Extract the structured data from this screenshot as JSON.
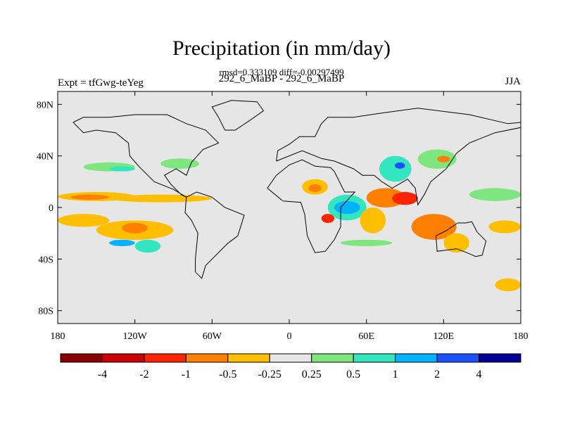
{
  "title": "Precipitation (in mm/day)",
  "stats": {
    "rmsd_label": "rmsd=",
    "rmsd_value": "0.333109",
    "diff_label": "diff=",
    "diff_value": "-0.00297499"
  },
  "case_label": "292_6_MaBP - 292_6_MaBP",
  "expt_label": "Expt = tfGwg-teYeg",
  "season": "JJA",
  "colors": {
    "background_field": "#e6e6e6",
    "levels": [
      "#8b0000",
      "#cd0000",
      "#ff2400",
      "#ff7f00",
      "#ffbf00",
      "#e6e6e6",
      "#7fe57f",
      "#34e6c0",
      "#00b2ff",
      "#1e4fff",
      "#000098"
    ]
  },
  "chart_data": {
    "type": "heatmap",
    "title": "Precipitation (in mm/day)",
    "subtitle": "292_6_MaBP - 292_6_MaBP",
    "x_ticks": [
      {
        "value": -180,
        "label": "180"
      },
      {
        "value": -120,
        "label": "120W"
      },
      {
        "value": -60,
        "label": "60W"
      },
      {
        "value": 0,
        "label": "0"
      },
      {
        "value": 60,
        "label": "60E"
      },
      {
        "value": 120,
        "label": "120E"
      },
      {
        "value": 180,
        "label": "180"
      }
    ],
    "y_ticks": [
      {
        "value": 80,
        "label": "80N"
      },
      {
        "value": 40,
        "label": "40N"
      },
      {
        "value": 0,
        "label": "0"
      },
      {
        "value": -40,
        "label": "40S"
      },
      {
        "value": -80,
        "label": "80S"
      }
    ],
    "xlim": [
      -180,
      180
    ],
    "ylim": [
      -90,
      90
    ],
    "colorbar_labels": [
      "-4",
      "-2",
      "-1",
      "-0.5",
      "-0.25",
      "0.25",
      "0.5",
      "1",
      "2",
      "4"
    ],
    "regions": [
      {
        "lon": [
          -180,
          -120
        ],
        "lat": [
          5,
          12
        ],
        "level": 4
      },
      {
        "lon": [
          -140,
          -60
        ],
        "lat": [
          4,
          10
        ],
        "level": 4
      },
      {
        "lon": [
          -170,
          -140
        ],
        "lat": [
          6,
          10
        ],
        "level": 3
      },
      {
        "lon": [
          -180,
          -140
        ],
        "lat": [
          -15,
          -5
        ],
        "level": 4
      },
      {
        "lon": [
          -150,
          -90
        ],
        "lat": [
          -25,
          -10
        ],
        "level": 4
      },
      {
        "lon": [
          -130,
          -110
        ],
        "lat": [
          -20,
          -12
        ],
        "level": 3
      },
      {
        "lon": [
          -140,
          -120
        ],
        "lat": [
          -30,
          -25
        ],
        "level": 8
      },
      {
        "lon": [
          -120,
          -100
        ],
        "lat": [
          -35,
          -25
        ],
        "level": 7
      },
      {
        "lon": [
          -160,
          -120
        ],
        "lat": [
          28,
          35
        ],
        "level": 6
      },
      {
        "lon": [
          -140,
          -120
        ],
        "lat": [
          28,
          32
        ],
        "level": 7
      },
      {
        "lon": [
          -100,
          -70
        ],
        "lat": [
          30,
          38
        ],
        "level": 6
      },
      {
        "lon": [
          10,
          30
        ],
        "lat": [
          10,
          22
        ],
        "level": 4
      },
      {
        "lon": [
          15,
          25
        ],
        "lat": [
          12,
          18
        ],
        "level": 3
      },
      {
        "lon": [
          30,
          60
        ],
        "lat": [
          -10,
          10
        ],
        "level": 7
      },
      {
        "lon": [
          35,
          55
        ],
        "lat": [
          -5,
          5
        ],
        "level": 8
      },
      {
        "lon": [
          25,
          35
        ],
        "lat": [
          -12,
          -5
        ],
        "level": 2
      },
      {
        "lon": [
          55,
          75
        ],
        "lat": [
          -20,
          0
        ],
        "level": 4
      },
      {
        "lon": [
          60,
          90
        ],
        "lat": [
          0,
          15
        ],
        "level": 3
      },
      {
        "lon": [
          80,
          100
        ],
        "lat": [
          2,
          12
        ],
        "level": 2
      },
      {
        "lon": [
          70,
          95
        ],
        "lat": [
          20,
          40
        ],
        "level": 7
      },
      {
        "lon": [
          82,
          90
        ],
        "lat": [
          30,
          35
        ],
        "level": 9
      },
      {
        "lon": [
          100,
          130
        ],
        "lat": [
          30,
          45
        ],
        "level": 6
      },
      {
        "lon": [
          115,
          125
        ],
        "lat": [
          35,
          40
        ],
        "level": 3
      },
      {
        "lon": [
          95,
          130
        ],
        "lat": [
          -25,
          -5
        ],
        "level": 3
      },
      {
        "lon": [
          120,
          140
        ],
        "lat": [
          -35,
          -20
        ],
        "level": 4
      },
      {
        "lon": [
          155,
          180
        ],
        "lat": [
          -20,
          -10
        ],
        "level": 4
      },
      {
        "lon": [
          140,
          180
        ],
        "lat": [
          5,
          15
        ],
        "level": 6
      },
      {
        "lon": [
          160,
          180
        ],
        "lat": [
          -65,
          -55
        ],
        "level": 4
      },
      {
        "lon": [
          40,
          80
        ],
        "lat": [
          -30,
          -25
        ],
        "level": 6
      }
    ]
  }
}
